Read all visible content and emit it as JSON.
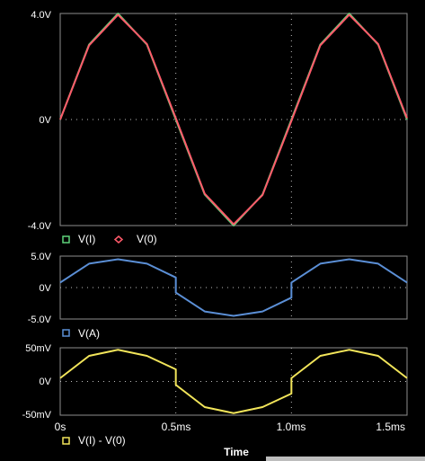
{
  "chart_data": [
    {
      "type": "line",
      "panel": "top",
      "ylim": [
        -4.0,
        4.0
      ],
      "xlim": [
        0,
        1.5
      ],
      "y_ticks": [
        "4.0V",
        "0V",
        "-4.0V"
      ],
      "grid": true,
      "legend_position": "bottom-left",
      "series": [
        {
          "name": "V(I)",
          "color": "#5fd37a",
          "x": [
            0,
            0.125,
            0.25,
            0.375,
            0.5,
            0.625,
            0.75,
            0.875,
            1.0,
            1.125,
            1.25,
            1.375,
            1.5
          ],
          "values": [
            0,
            2.83,
            4.0,
            2.83,
            0,
            -2.83,
            -4.0,
            -2.83,
            0,
            2.83,
            4.0,
            2.83,
            0
          ]
        },
        {
          "name": "V(0)",
          "color": "#ff5a6a",
          "x": [
            0,
            0.125,
            0.25,
            0.375,
            0.5,
            0.625,
            0.75,
            0.875,
            1.0,
            1.125,
            1.25,
            1.375,
            1.5
          ],
          "values": [
            0,
            2.8,
            3.95,
            2.85,
            0.05,
            -2.8,
            -3.95,
            -2.85,
            -0.05,
            2.8,
            3.95,
            2.85,
            0.05
          ]
        }
      ]
    },
    {
      "type": "line",
      "panel": "middle",
      "ylim": [
        -5.0,
        5.0
      ],
      "xlim": [
        0,
        1.5
      ],
      "y_ticks": [
        "5.0V",
        "0V",
        "-5.0V"
      ],
      "grid": true,
      "legend_position": "bottom-left",
      "series": [
        {
          "name": "V(A)",
          "color": "#5b8fd6",
          "x": [
            0,
            0.125,
            0.25,
            0.375,
            0.5,
            0.5,
            0.625,
            0.75,
            0.875,
            1.0,
            1.0,
            1.125,
            1.25,
            1.375,
            1.5
          ],
          "values": [
            0.8,
            3.8,
            4.5,
            3.8,
            1.6,
            -0.8,
            -3.8,
            -4.5,
            -3.8,
            -1.6,
            0.8,
            3.8,
            4.5,
            3.8,
            0.8
          ]
        }
      ]
    },
    {
      "type": "line",
      "panel": "bottom",
      "ylim": [
        -50,
        50
      ],
      "xlim": [
        0,
        1.5
      ],
      "y_ticks": [
        "50mV",
        "0V",
        "-50mV"
      ],
      "x_ticks": [
        "0s",
        "0.5ms",
        "1.0ms",
        "1.5ms"
      ],
      "xlabel": "Time",
      "grid": true,
      "legend_position": "bottom-left",
      "series": [
        {
          "name": "V(I) - V(0)",
          "color": "#f2e55a",
          "x": [
            0,
            0.125,
            0.25,
            0.375,
            0.5,
            0.5,
            0.625,
            0.75,
            0.875,
            1.0,
            1.0,
            1.125,
            1.25,
            1.375,
            1.5
          ],
          "values": [
            5,
            38,
            47,
            38,
            18,
            -5,
            -38,
            -47,
            -38,
            -18,
            5,
            38,
            47,
            38,
            5
          ]
        }
      ]
    }
  ],
  "legends": {
    "top": [
      "V(I)",
      "V(0)"
    ],
    "middle": [
      "V(A)"
    ],
    "bottom": [
      "V(I) -  V(0)"
    ]
  },
  "axis": {
    "x_ticks": [
      "0s",
      "0.5ms",
      "1.0ms",
      "1.5ms"
    ],
    "xlabel": "Time"
  }
}
